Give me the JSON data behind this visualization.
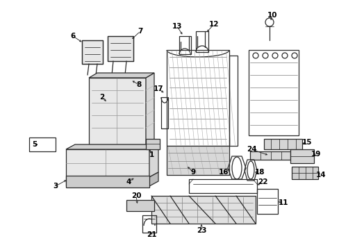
{
  "bg_color": "#ffffff",
  "lc": "#2a2a2a",
  "figsize": [
    4.89,
    3.6
  ],
  "dpi": 100,
  "lfs": 7.5,
  "lw": 0.9
}
